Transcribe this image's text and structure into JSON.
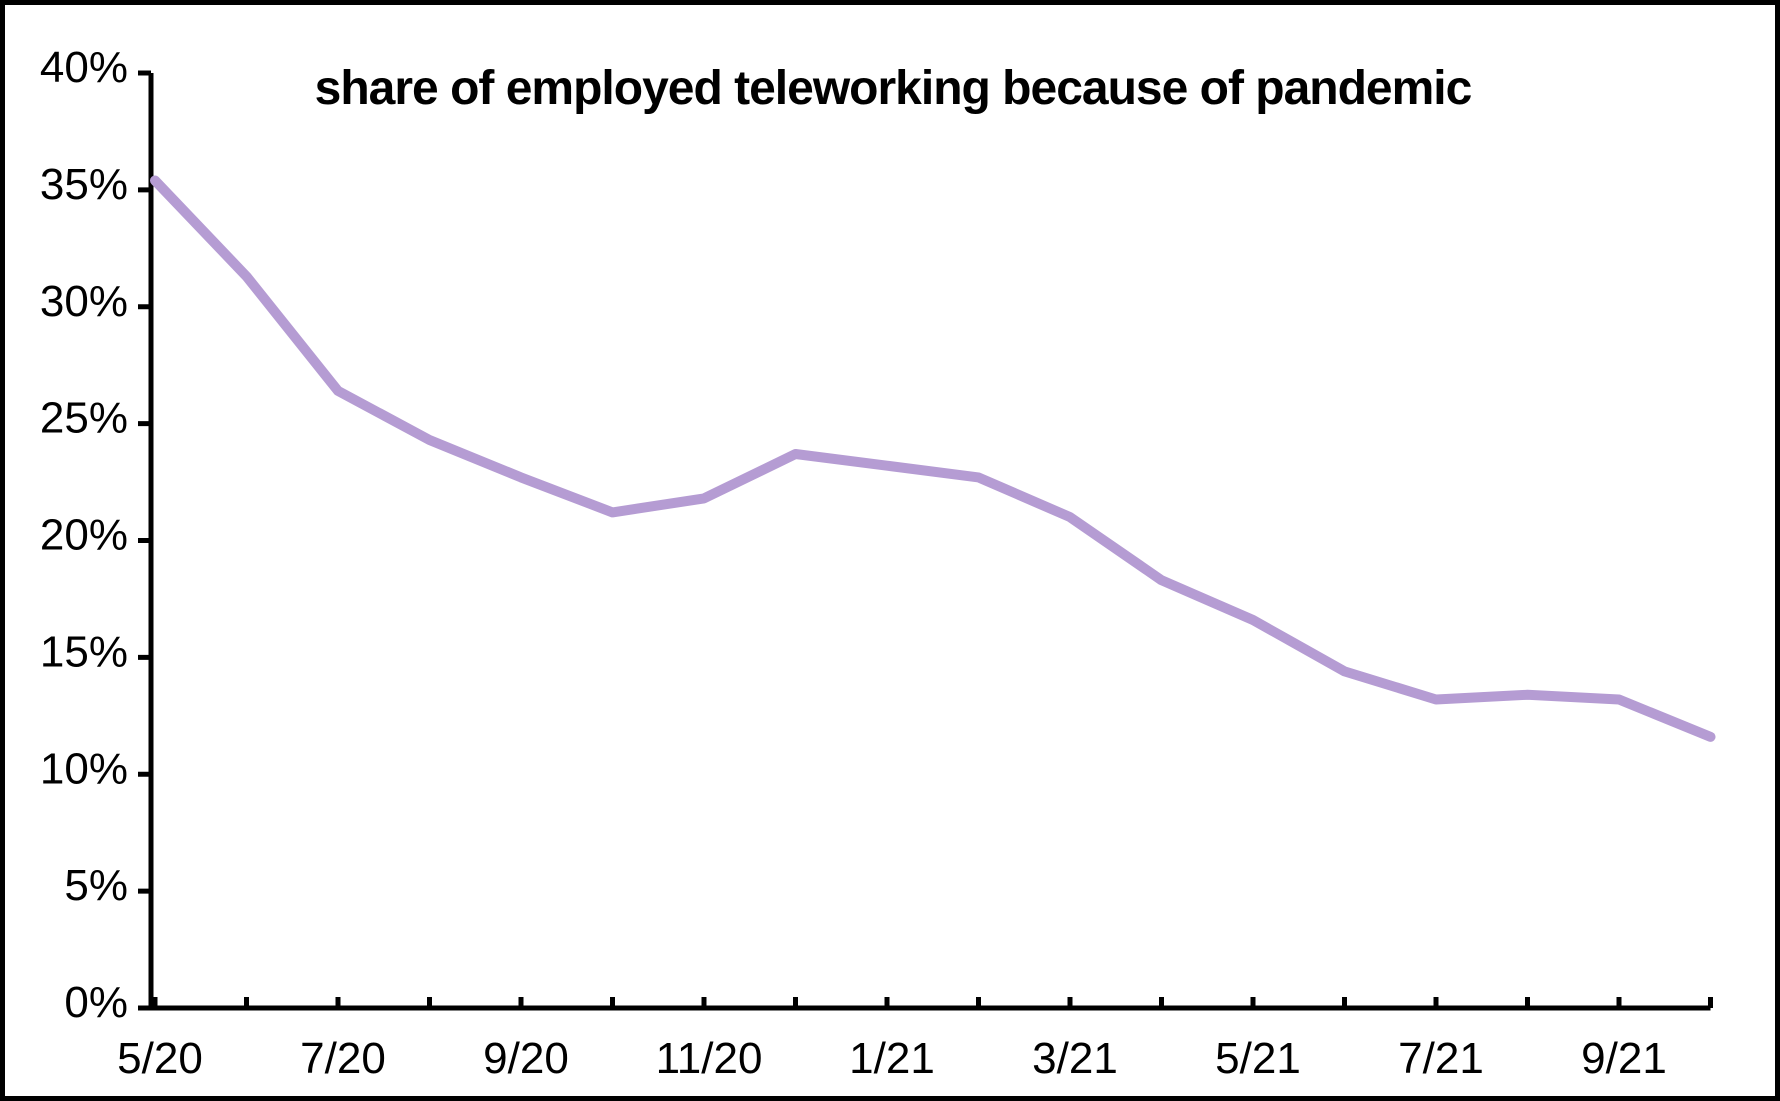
{
  "title": "share of employed teleworking because of pandemic",
  "colors": {
    "line": "#b59cd3",
    "axis": "#000000",
    "text": "#000000",
    "background": "#ffffff",
    "frame": "#000000"
  },
  "chart_data": {
    "type": "line",
    "title": "share of employed teleworking because of pandemic",
    "x": [
      "5/20",
      "6/20",
      "7/20",
      "8/20",
      "9/20",
      "10/20",
      "11/20",
      "12/20",
      "1/21",
      "2/21",
      "3/21",
      "4/21",
      "5/21",
      "6/21",
      "7/21",
      "8/21",
      "9/21",
      "10/21"
    ],
    "values": [
      35.4,
      31.3,
      26.4,
      24.3,
      22.7,
      21.2,
      21.8,
      23.7,
      23.2,
      22.7,
      21.0,
      18.3,
      16.6,
      14.4,
      13.2,
      13.4,
      13.2,
      11.6
    ],
    "xlabel": "",
    "ylabel": "",
    "ylim": [
      0,
      40
    ],
    "ytick_step": 5,
    "ytick_labels": [
      "0%",
      "5%",
      "10%",
      "15%",
      "20%",
      "25%",
      "30%",
      "35%",
      "40%"
    ],
    "xtick_labels_shown": [
      "5/20",
      "7/20",
      "9/20",
      "11/20",
      "1/21",
      "3/21",
      "5/21",
      "7/21",
      "9/21"
    ],
    "xtick_label_every": 2,
    "grid": false,
    "legend": "none",
    "line_width": 10
  }
}
